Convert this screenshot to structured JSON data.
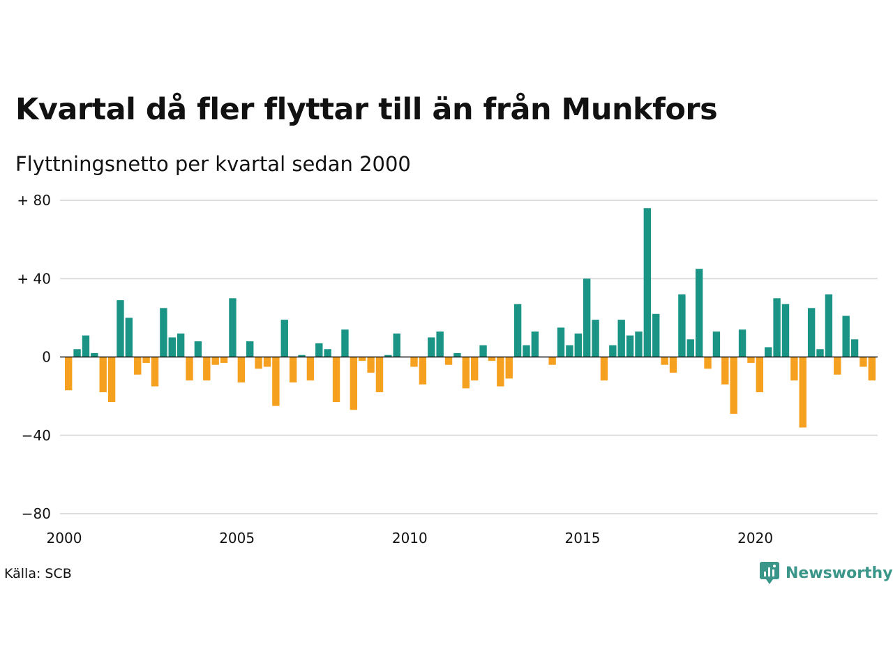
{
  "header": {
    "title": "Kvartal då fler flyttar till än från Munkfors",
    "subtitle": "Flyttningsnetto per kvartal sedan 2000"
  },
  "footer": {
    "source": "Källa: SCB",
    "brand": "Newsworthy",
    "brand_icon": "newsworthy-logo-icon"
  },
  "colors": {
    "positive": "#1a9484",
    "negative": "#f5a01e",
    "grid": "#dddddd",
    "brand": "#3a9688"
  },
  "chart_data": {
    "type": "bar",
    "title": "Kvartal då fler flyttar till än från Munkfors",
    "subtitle": "Flyttningsnetto per kvartal sedan 2000",
    "xlabel": "",
    "ylabel": "",
    "ylim": [
      -80,
      80
    ],
    "y_ticks": [
      80,
      40,
      0,
      -40,
      -80
    ],
    "y_tick_labels": [
      "+ 80",
      "+ 40",
      "0",
      "−40",
      "−80"
    ],
    "x_ticks": [
      2000,
      2005,
      2010,
      2015,
      2020
    ],
    "x_tick_labels": [
      "2000",
      "2005",
      "2010",
      "2015",
      "2020"
    ],
    "x_start": 2000,
    "periods_per_year": 4,
    "grid": true,
    "legend": "none",
    "values": [
      -17,
      4,
      11,
      2,
      -18,
      -23,
      29,
      20,
      -9,
      -3,
      -15,
      25,
      10,
      12,
      -12,
      8,
      -12,
      -4,
      -3,
      30,
      -13,
      8,
      -6,
      -5,
      -25,
      19,
      -13,
      1,
      -12,
      7,
      4,
      -23,
      14,
      -27,
      -2,
      -8,
      -18,
      1,
      12,
      0,
      -5,
      -14,
      10,
      13,
      -4,
      2,
      -16,
      -12,
      6,
      -2,
      -15,
      -11,
      27,
      6,
      13,
      0,
      -4,
      15,
      6,
      12,
      40,
      19,
      -12,
      6,
      19,
      11,
      13,
      76,
      22,
      -4,
      -8,
      32,
      9,
      45,
      -6,
      13,
      -14,
      -29,
      14,
      -3,
      -18,
      5,
      30,
      27,
      -12,
      -36,
      25,
      4,
      32,
      -9,
      21,
      9,
      -5,
      -12
    ]
  }
}
